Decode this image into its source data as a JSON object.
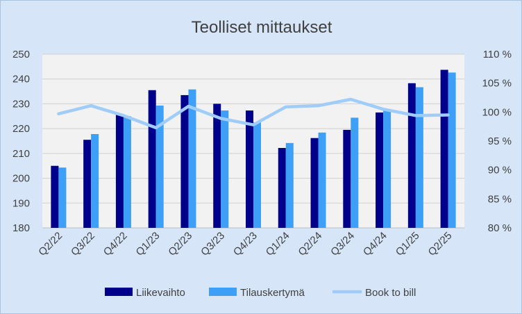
{
  "chart_data": {
    "type": "bar",
    "title": "Teolliset mittaukset",
    "categories": [
      "Q2/22",
      "Q3/22",
      "Q4/22",
      "Q1/23",
      "Q2/23",
      "Q3/23",
      "Q4/23",
      "Q1/24",
      "Q2/24",
      "Q3/24",
      "Q4/24",
      "Q1/25",
      "Q2/25"
    ],
    "series": [
      {
        "name": "Liikevaihto",
        "type": "bar",
        "axis": "left",
        "color": "#00008b",
        "values": [
          205,
          215.5,
          225.5,
          235.5,
          233.5,
          230,
          227.3,
          212.2,
          216.2,
          219.5,
          226.5,
          238.3,
          243.7
        ]
      },
      {
        "name": "Tilauskertymä",
        "type": "bar",
        "axis": "left",
        "color": "#3d9ff5",
        "values": [
          204.3,
          217.8,
          225,
          229.3,
          235.8,
          227.3,
          222.5,
          214.2,
          218.4,
          224.4,
          227.6,
          236.7,
          242.6
        ]
      },
      {
        "name": "Book to bill",
        "type": "line",
        "axis": "right",
        "color": "#9fcdf7",
        "values": [
          99.7,
          101.1,
          99.4,
          97.3,
          101.0,
          98.9,
          97.8,
          100.9,
          101.1,
          102.2,
          100.5,
          99.4,
          99.5
        ]
      }
    ],
    "left_axis": {
      "ylim": [
        180,
        250
      ],
      "ticks": [
        180,
        190,
        200,
        210,
        220,
        230,
        240,
        250
      ],
      "tick_labels": [
        "180",
        "190",
        "200",
        "210",
        "220",
        "230",
        "240",
        "250"
      ]
    },
    "right_axis": {
      "ylim": [
        80,
        110
      ],
      "ticks": [
        80,
        85,
        90,
        95,
        100,
        105,
        110
      ],
      "tick_labels": [
        "80 %",
        "85 %",
        "90 %",
        "95 %",
        "100 %",
        "105 %",
        "110 %"
      ]
    },
    "grid": true,
    "legend": "bottom"
  }
}
